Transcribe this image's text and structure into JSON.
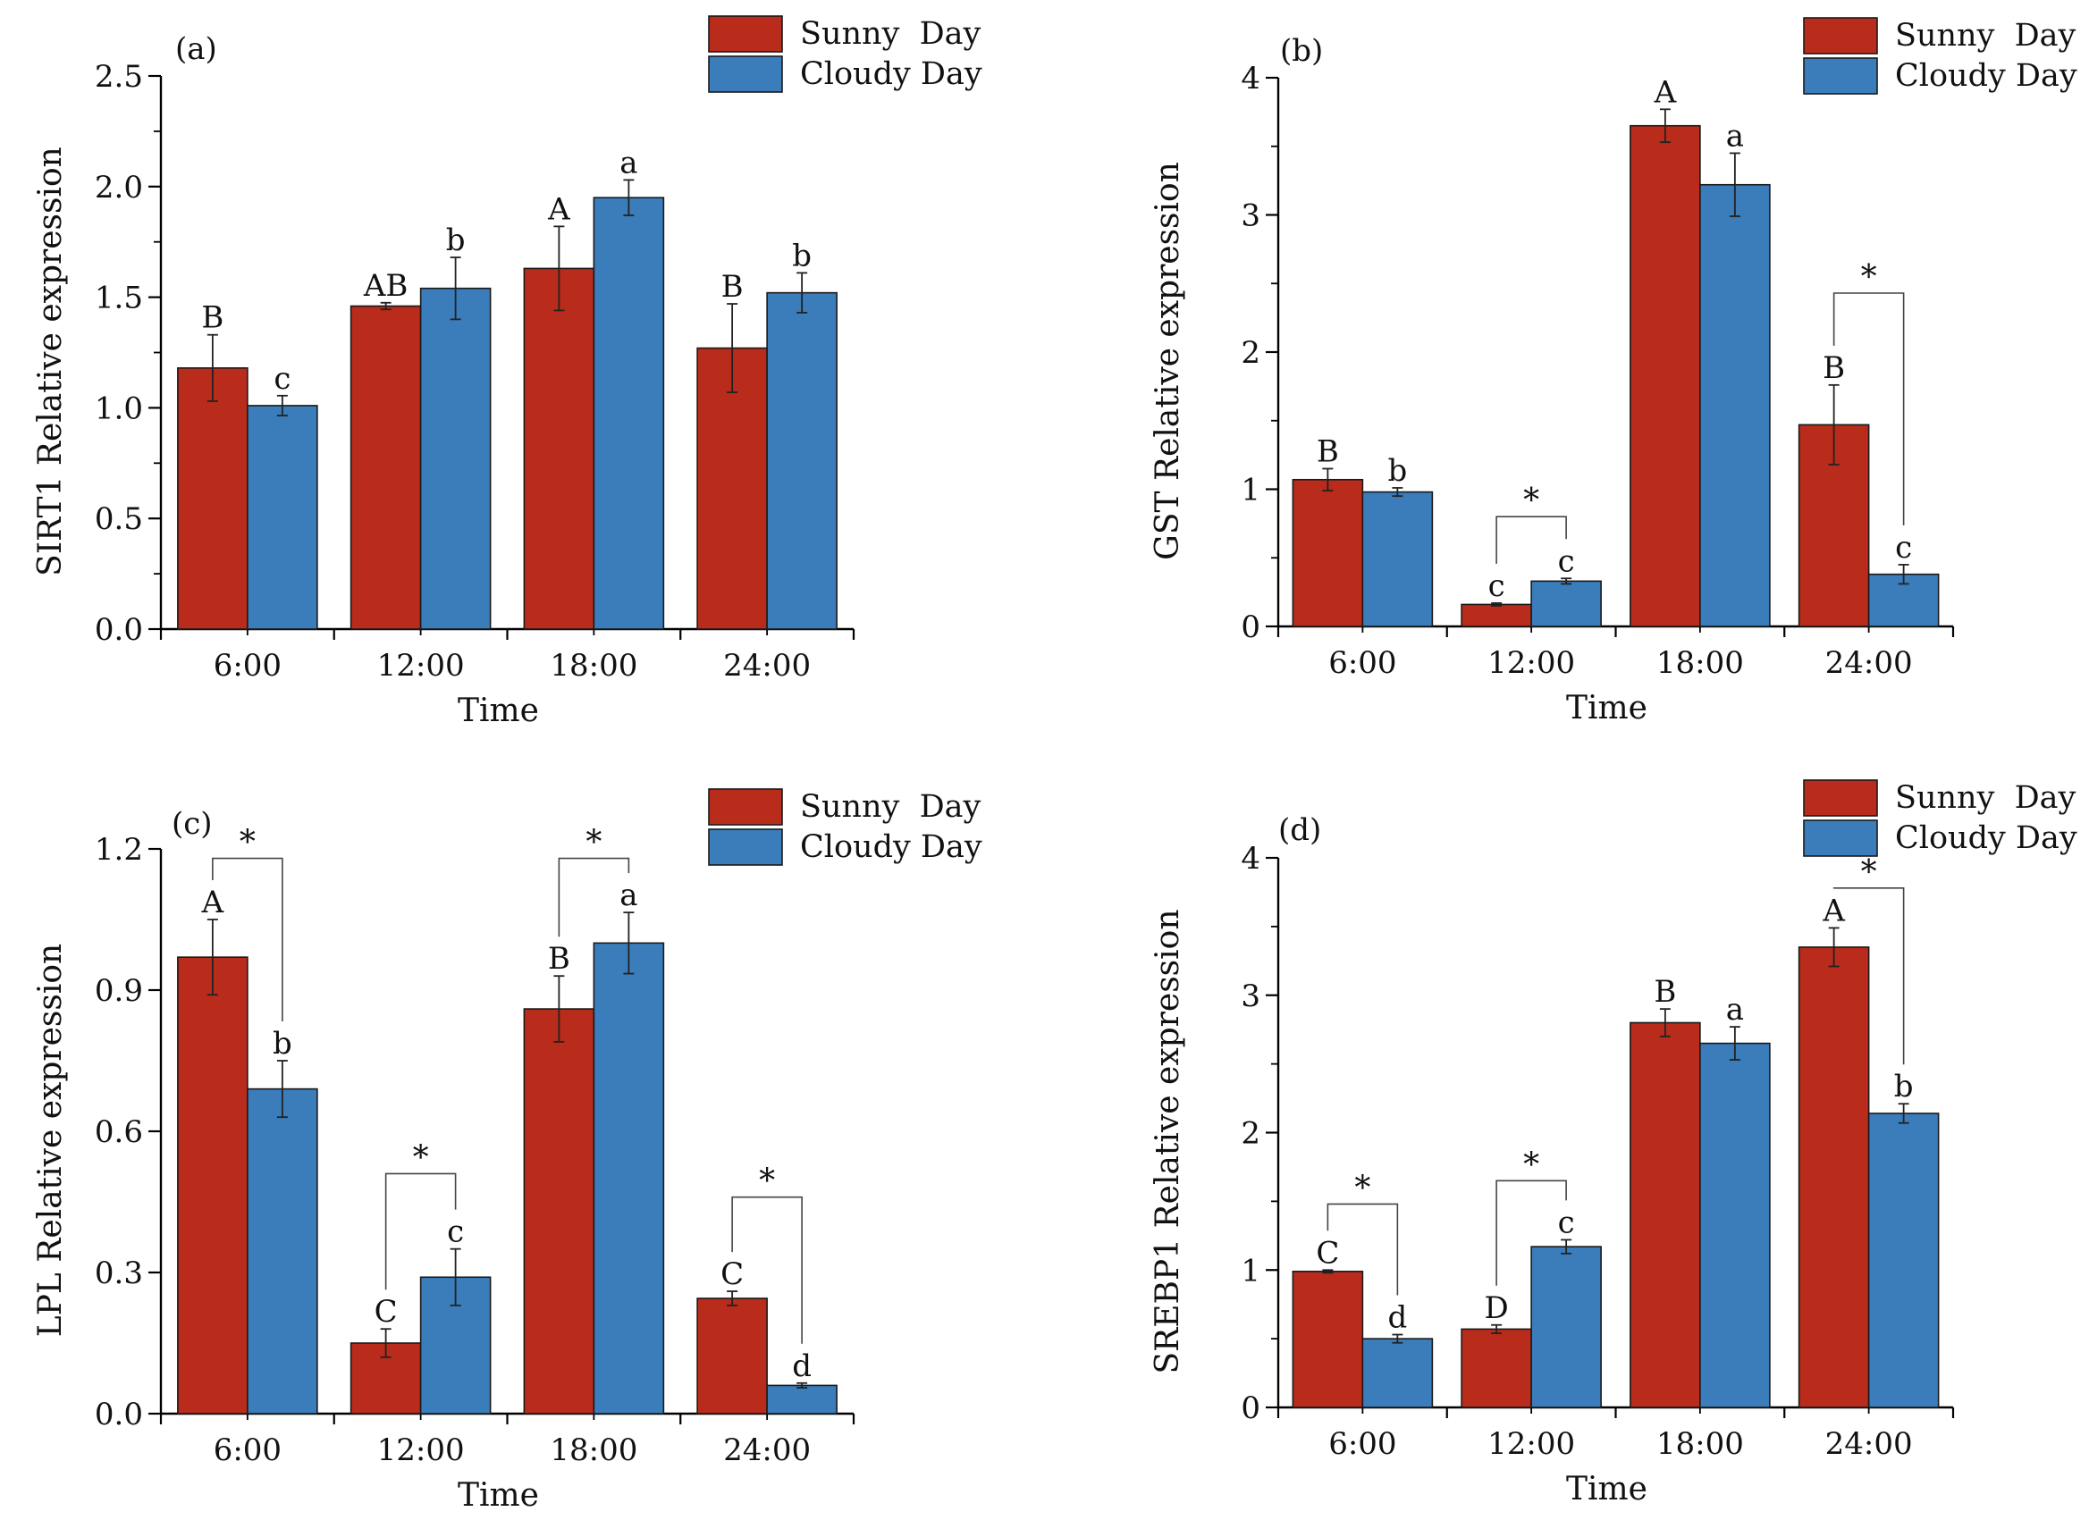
{
  "figure": {
    "colors": {
      "sunny": "#b92b1a",
      "cloudy": "#3a7dba"
    },
    "legend": [
      "Sunny  Day",
      "Cloudy Day"
    ]
  },
  "chart_data": [
    {
      "type": "bar",
      "panel": "(a)",
      "xlabel": "Time",
      "ylabel": "SIRT1 Relative expression",
      "categories": [
        "6:00",
        "12:00",
        "18:00",
        "24:00"
      ],
      "ylim": [
        0,
        2.5
      ],
      "yticks": [
        0,
        0.5,
        1.0,
        1.5,
        2.0,
        2.5
      ],
      "ytick_labels": [
        "0.0",
        "0.5",
        "1.0",
        "1.5",
        "2.0",
        "2.5"
      ],
      "minor_ticks": true,
      "series": [
        {
          "name": "Sunny  Day",
          "values": [
            1.18,
            1.46,
            1.63,
            1.27
          ],
          "errors": [
            0.15,
            0.015,
            0.19,
            0.2
          ],
          "letters": [
            "B",
            "AB",
            "A",
            "B"
          ]
        },
        {
          "name": "Cloudy Day",
          "values": [
            1.01,
            1.54,
            1.95,
            1.52
          ],
          "errors": [
            0.045,
            0.14,
            0.08,
            0.09
          ],
          "letters": [
            "c",
            "b",
            "a",
            "b"
          ]
        }
      ],
      "significance": []
    },
    {
      "type": "bar",
      "panel": "(b)",
      "xlabel": "Time",
      "ylabel": "GST Relative expression",
      "categories": [
        "6:00",
        "12:00",
        "18:00",
        "24:00"
      ],
      "ylim": [
        0,
        4
      ],
      "yticks": [
        0,
        1,
        2,
        3,
        4
      ],
      "ytick_labels": [
        "0",
        "1",
        "2",
        "3",
        "4"
      ],
      "minor_ticks": true,
      "series": [
        {
          "name": "Sunny  Day",
          "values": [
            1.07,
            0.16,
            3.65,
            1.47
          ],
          "errors": [
            0.08,
            0.01,
            0.12,
            0.29
          ],
          "letters": [
            "B",
            "c",
            "A",
            "B"
          ]
        },
        {
          "name": "Cloudy Day",
          "values": [
            0.98,
            0.33,
            3.22,
            0.38
          ],
          "errors": [
            0.03,
            0.02,
            0.23,
            0.07
          ],
          "letters": [
            "b",
            "c",
            "a",
            "c"
          ]
        }
      ],
      "significance": [
        {
          "category": 1,
          "label": "*",
          "y": 0.8
        },
        {
          "category": 3,
          "label": "*",
          "y": 2.43
        }
      ]
    },
    {
      "type": "bar",
      "panel": "(c)",
      "xlabel": "Time",
      "ylabel": "LPL Relative expression",
      "categories": [
        "6:00",
        "12:00",
        "18:00",
        "24:00"
      ],
      "ylim": [
        0,
        1.2
      ],
      "yticks": [
        0,
        0.3,
        0.6,
        0.9,
        1.2
      ],
      "ytick_labels": [
        "0.0",
        "0.3",
        "0.6",
        "0.9",
        "1.2"
      ],
      "minor_ticks": false,
      "series": [
        {
          "name": "Sunny  Day",
          "values": [
            0.97,
            0.15,
            0.86,
            0.245
          ],
          "errors": [
            0.08,
            0.03,
            0.07,
            0.015
          ],
          "letters": [
            "A",
            "C",
            "B",
            "C"
          ]
        },
        {
          "name": "Cloudy Day",
          "values": [
            0.69,
            0.29,
            1.0,
            0.06
          ],
          "errors": [
            0.06,
            0.06,
            0.065,
            0.005
          ],
          "letters": [
            "b",
            "c",
            "a",
            "d"
          ]
        }
      ],
      "significance": [
        {
          "category": 0,
          "label": "*",
          "y": 1.18
        },
        {
          "category": 1,
          "label": "*",
          "y": 0.51
        },
        {
          "category": 2,
          "label": "*",
          "y": 1.18
        },
        {
          "category": 3,
          "label": "*",
          "y": 0.46
        }
      ]
    },
    {
      "type": "bar",
      "panel": "(d)",
      "xlabel": "Time",
      "ylabel": "SREBP1 Relative expression",
      "categories": [
        "6:00",
        "12:00",
        "18:00",
        "24:00"
      ],
      "ylim": [
        0,
        4
      ],
      "yticks": [
        0,
        1,
        2,
        3,
        4
      ],
      "ytick_labels": [
        "0",
        "1",
        "2",
        "3",
        "4"
      ],
      "minor_ticks": true,
      "series": [
        {
          "name": "Sunny  Day",
          "values": [
            0.99,
            0.57,
            2.8,
            3.35
          ],
          "errors": [
            0.01,
            0.03,
            0.1,
            0.14
          ],
          "letters": [
            "C",
            "D",
            "B",
            "A"
          ]
        },
        {
          "name": "Cloudy Day",
          "values": [
            0.5,
            1.17,
            2.65,
            2.14
          ],
          "errors": [
            0.03,
            0.05,
            0.12,
            0.07
          ],
          "letters": [
            "d",
            "c",
            "a",
            "b"
          ]
        }
      ],
      "significance": [
        {
          "category": 0,
          "label": "*",
          "y": 1.48
        },
        {
          "category": 1,
          "label": "*",
          "y": 1.65
        },
        {
          "category": 3,
          "label": "*",
          "y": 3.78
        }
      ]
    }
  ]
}
